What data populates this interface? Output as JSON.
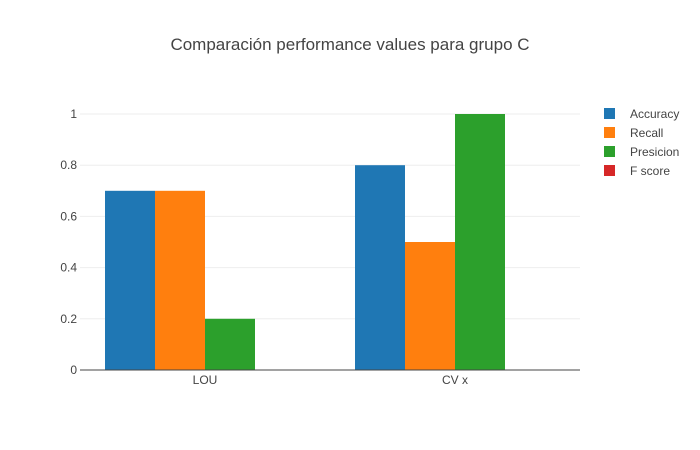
{
  "chart_data": {
    "type": "bar",
    "title": "Comparación performance values para grupo C",
    "xlabel": "",
    "ylabel": "",
    "categories": [
      "LOU",
      "CV x"
    ],
    "ylim": [
      0,
      1
    ],
    "yticks": [
      0,
      0.2,
      0.4,
      0.6,
      0.8,
      1
    ],
    "ytick_labels": [
      "0",
      "0.2",
      "0.4",
      "0.6",
      "0.8",
      "1"
    ],
    "grid": true,
    "legend_position": "top-right",
    "series": [
      {
        "name": "Accuracy",
        "color": "#1f77b4",
        "values": [
          0.7,
          0.8
        ]
      },
      {
        "name": "Recall",
        "color": "#ff7f0e",
        "values": [
          0.7,
          0.5
        ]
      },
      {
        "name": "Presicion",
        "color": "#2ca02c",
        "values": [
          0.2,
          1.0
        ]
      },
      {
        "name": "F score",
        "color": "#d62728",
        "values": [
          0,
          0
        ]
      }
    ]
  }
}
